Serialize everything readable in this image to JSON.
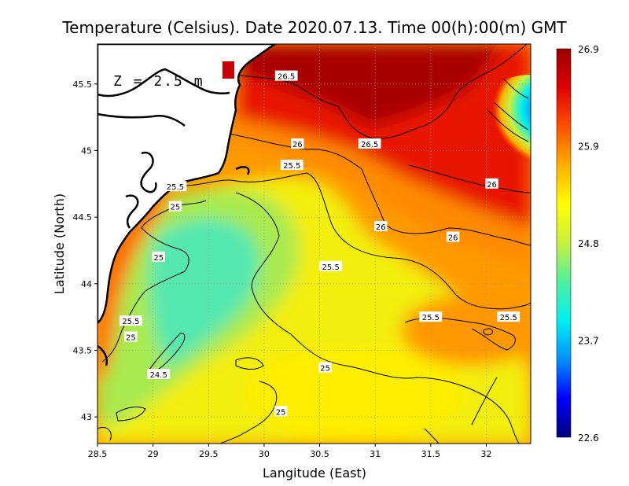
{
  "chart_data": {
    "type": "heatmap",
    "title": "Temperature (Celsius). Date 2020.07.13. Time 00(h):00(m) GMT",
    "xlabel": "Langitude (East)",
    "ylabel": "Latitude (North)",
    "depth_label": "Z = 2.5 m",
    "xlim": [
      28.5,
      32.4
    ],
    "ylim": [
      42.8,
      45.8
    ],
    "x_ticks": [
      "28.5",
      "29",
      "29.5",
      "30",
      "30.5",
      "31",
      "31.5",
      "32"
    ],
    "y_ticks": [
      "43",
      "43.5",
      "44",
      "44.5",
      "45",
      "45.5"
    ],
    "grid": true,
    "colorbar": {
      "min": 22.6,
      "max": 26.9,
      "tick_labels": [
        "26.9",
        "25.9",
        "24.8",
        "23.7",
        "22.6"
      ],
      "colors": [
        "#00007a",
        "#0000ff",
        "#0090ff",
        "#00f0f0",
        "#50f0a0",
        "#c8f040",
        "#ffff00",
        "#ffb000",
        "#ff5000",
        "#e00000",
        "#9a0000"
      ]
    },
    "contour_labels": [
      {
        "text": "26.5",
        "x": 30.2,
        "y": 45.56
      },
      {
        "text": "26",
        "x": 30.3,
        "y": 45.05
      },
      {
        "text": "26.5",
        "x": 30.95,
        "y": 45.05
      },
      {
        "text": "25.5",
        "x": 30.25,
        "y": 44.89
      },
      {
        "text": "26",
        "x": 32.05,
        "y": 44.75
      },
      {
        "text": "25.5",
        "x": 29.2,
        "y": 44.73
      },
      {
        "text": "25",
        "x": 29.2,
        "y": 44.58
      },
      {
        "text": "26",
        "x": 31.05,
        "y": 44.43
      },
      {
        "text": "26",
        "x": 31.7,
        "y": 44.35
      },
      {
        "text": "25",
        "x": 29.05,
        "y": 44.2
      },
      {
        "text": "25.5",
        "x": 30.6,
        "y": 44.13
      },
      {
        "text": "25.5",
        "x": 31.5,
        "y": 43.75
      },
      {
        "text": "25.5",
        "x": 32.2,
        "y": 43.75
      },
      {
        "text": "25.5",
        "x": 28.8,
        "y": 43.72
      },
      {
        "text": "25",
        "x": 28.8,
        "y": 43.6
      },
      {
        "text": "24.5",
        "x": 29.05,
        "y": 43.32
      },
      {
        "text": "25",
        "x": 30.55,
        "y": 43.37
      },
      {
        "text": "25",
        "x": 30.15,
        "y": 43.04
      }
    ]
  }
}
